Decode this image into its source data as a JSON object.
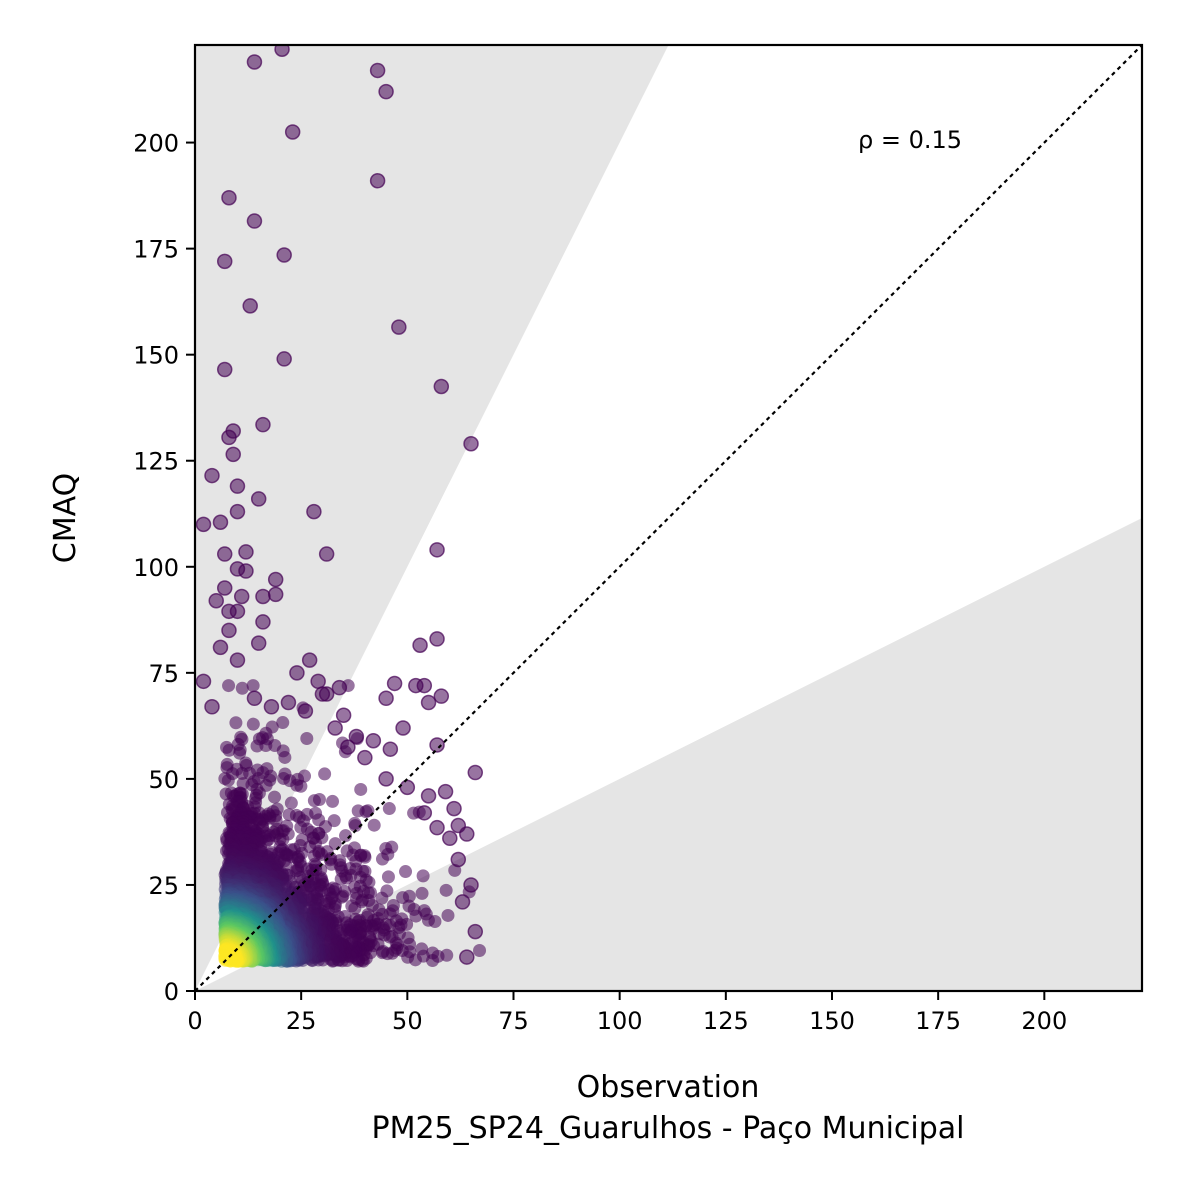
{
  "chart_data": {
    "type": "scatter",
    "title": "",
    "xlabel": "Observation",
    "xlabel_sub": "PM25_SP24_Guarulhos - Paço Municipal",
    "ylabel": "CMAQ",
    "xlim": [
      0,
      223
    ],
    "ylim": [
      0,
      223
    ],
    "xticks": [
      0,
      25,
      50,
      75,
      100,
      125,
      150,
      175,
      200
    ],
    "yticks": [
      0,
      25,
      50,
      75,
      100,
      125,
      150,
      175,
      200
    ],
    "annotation": "ρ = 0.15",
    "reference_line": "1:1",
    "shaded_band_slopes": [
      2,
      0.5
    ],
    "colormap": "viridis",
    "colors": {
      "band": "#e5e5e5",
      "low_density": "#440154",
      "high_density": "#fde725"
    },
    "grid": false,
    "outlier_points": [
      [
        20.5,
        222
      ],
      [
        14,
        219
      ],
      [
        43,
        217
      ],
      [
        45,
        212
      ],
      [
        23,
        202.5
      ],
      [
        43,
        191
      ],
      [
        8,
        187
      ],
      [
        14,
        181.5
      ],
      [
        7,
        172
      ],
      [
        21,
        173.5
      ],
      [
        13,
        161.5
      ],
      [
        48,
        156.5
      ],
      [
        21,
        149
      ],
      [
        7,
        146.5
      ],
      [
        58,
        142.5
      ],
      [
        16,
        133.5
      ],
      [
        9,
        132
      ],
      [
        8,
        130.5
      ],
      [
        65,
        129
      ],
      [
        9,
        126.5
      ],
      [
        4,
        121.5
      ],
      [
        10,
        119
      ],
      [
        15,
        116
      ],
      [
        10,
        113
      ],
      [
        28,
        113
      ],
      [
        2,
        110
      ],
      [
        6,
        110.5
      ],
      [
        57,
        104
      ],
      [
        31,
        103
      ],
      [
        12,
        103.5
      ],
      [
        7,
        103
      ],
      [
        10,
        99.5
      ],
      [
        12,
        99
      ],
      [
        19,
        97
      ],
      [
        5,
        92
      ],
      [
        11,
        93
      ],
      [
        16,
        93
      ],
      [
        19,
        93.5
      ],
      [
        8,
        89.5
      ],
      [
        10,
        89.5
      ],
      [
        7,
        95
      ],
      [
        16,
        87
      ],
      [
        8,
        85
      ],
      [
        57,
        83
      ],
      [
        53,
        81.5
      ],
      [
        15,
        82
      ],
      [
        27,
        78
      ],
      [
        10,
        78
      ],
      [
        6,
        81
      ],
      [
        24,
        75
      ],
      [
        47,
        72.5
      ],
      [
        52,
        72
      ],
      [
        54,
        72
      ],
      [
        58,
        69.5
      ],
      [
        45,
        69
      ],
      [
        34,
        71.5
      ],
      [
        31,
        70
      ],
      [
        29,
        73
      ],
      [
        2,
        73
      ],
      [
        55,
        68
      ],
      [
        57,
        58
      ],
      [
        49,
        62
      ],
      [
        42,
        59
      ],
      [
        46,
        57
      ],
      [
        36,
        57.5
      ],
      [
        66,
        51.5
      ],
      [
        59,
        47
      ],
      [
        55,
        46
      ],
      [
        61,
        43
      ],
      [
        54,
        42
      ],
      [
        62,
        39
      ],
      [
        64,
        37
      ],
      [
        57,
        38.5
      ],
      [
        60,
        36
      ],
      [
        65,
        25
      ],
      [
        62,
        31
      ],
      [
        63,
        21
      ],
      [
        66,
        14
      ],
      [
        64,
        8
      ],
      [
        30,
        70
      ],
      [
        38,
        60
      ],
      [
        40,
        55
      ],
      [
        45,
        50
      ],
      [
        50,
        48
      ],
      [
        35,
        65
      ],
      [
        26,
        66
      ],
      [
        22,
        68
      ],
      [
        18,
        67
      ],
      [
        14,
        69
      ],
      [
        4,
        67
      ],
      [
        33,
        62
      ]
    ]
  }
}
